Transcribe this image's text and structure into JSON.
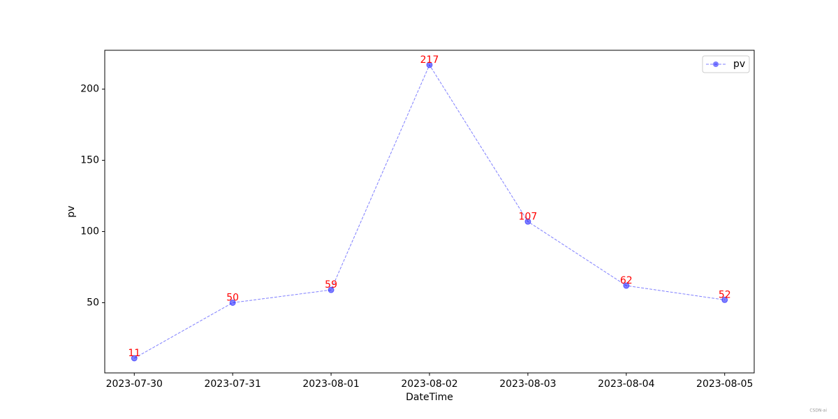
{
  "chart_data": {
    "type": "line",
    "categories": [
      "2023-07-30",
      "2023-07-31",
      "2023-08-01",
      "2023-08-02",
      "2023-08-03",
      "2023-08-04",
      "2023-08-05"
    ],
    "series": [
      {
        "name": "pv",
        "color": "#0000ff",
        "values": [
          11,
          50,
          59,
          217,
          107,
          62,
          52
        ]
      }
    ],
    "xlabel": "DateTime",
    "ylabel": "pv",
    "ylim": [
      0.7,
      227.3
    ],
    "yticks": [
      50,
      100,
      150,
      200
    ],
    "legend": "upper right",
    "label_color": "#ff0000",
    "watermark": "CSDN-ai"
  }
}
